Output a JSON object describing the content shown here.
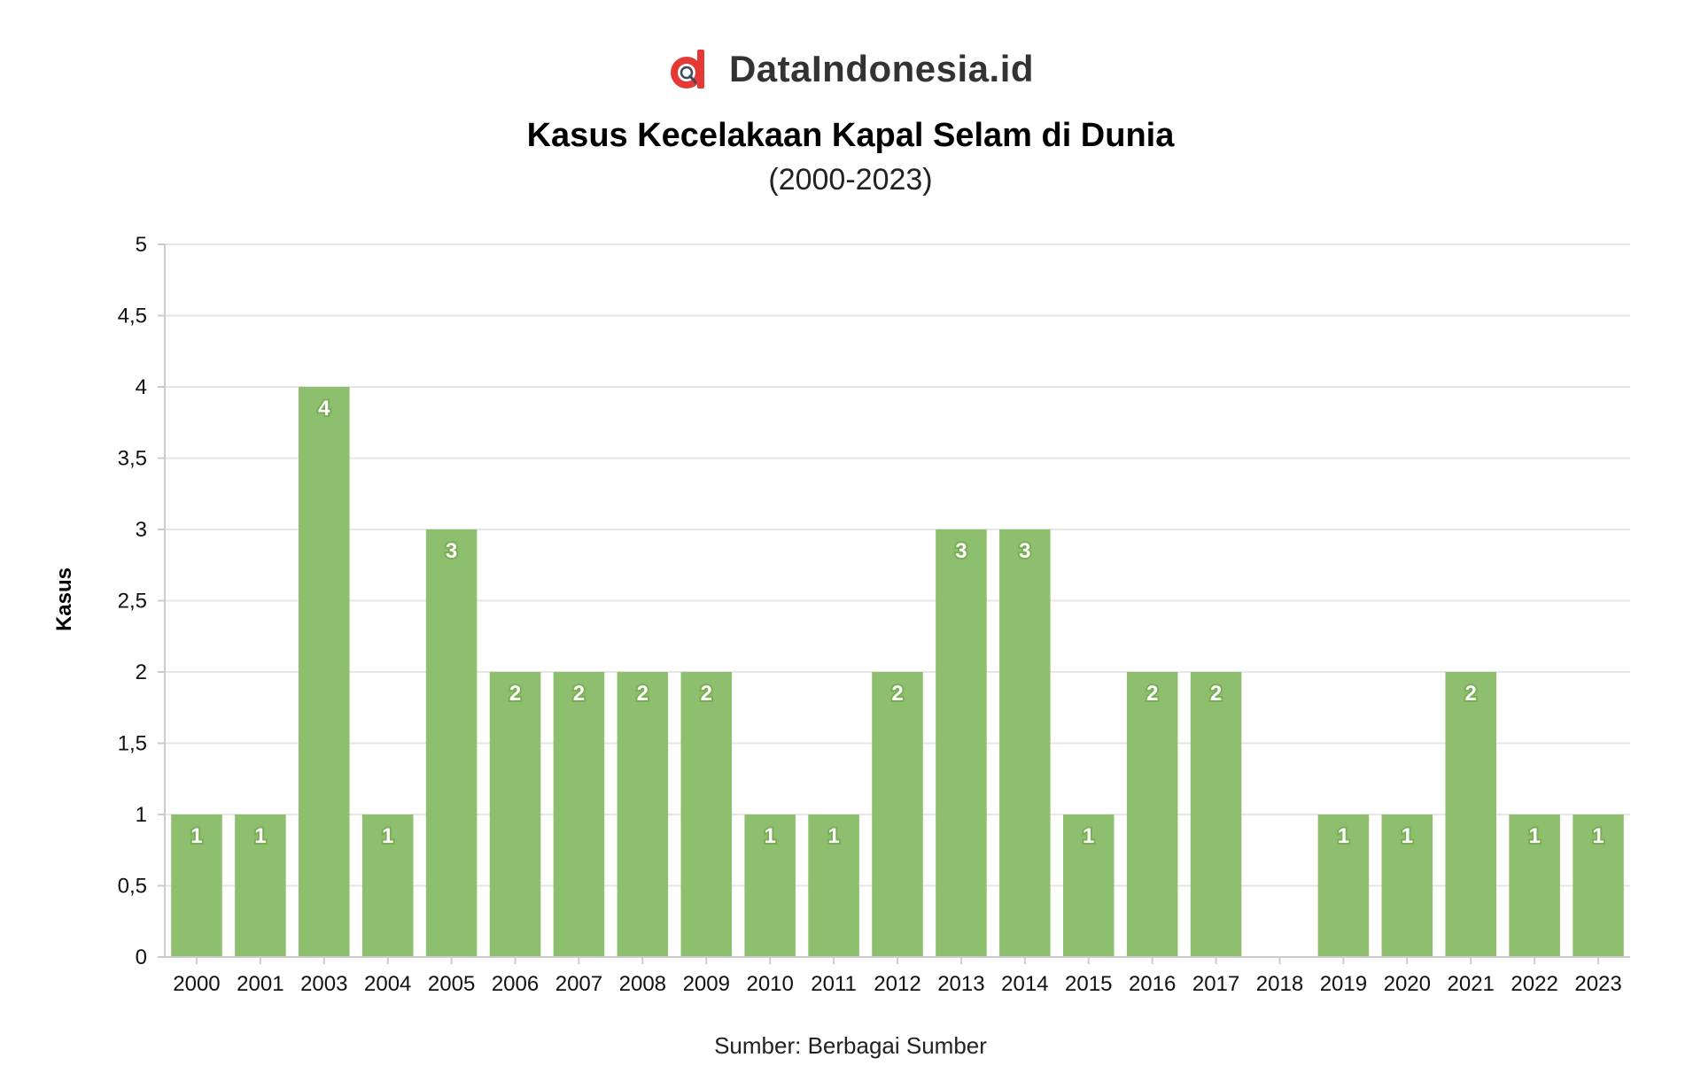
{
  "brand": {
    "name": "DataIndonesia.id",
    "logo_icon": "dataindonesia-logo-icon",
    "logo_color": "#e53935"
  },
  "chart_data": {
    "type": "bar",
    "title": "Kasus Kecelakaan Kapal Selam di Dunia",
    "subtitle": "(2000-2023)",
    "xlabel": "",
    "ylabel": "Kasus",
    "categories": [
      "2000",
      "2001",
      "2003",
      "2004",
      "2005",
      "2006",
      "2007",
      "2008",
      "2009",
      "2010",
      "2011",
      "2012",
      "2013",
      "2014",
      "2015",
      "2016",
      "2017",
      "2018",
      "2019",
      "2020",
      "2021",
      "2022",
      "2023"
    ],
    "values": [
      1,
      1,
      4,
      1,
      3,
      2,
      2,
      2,
      2,
      1,
      1,
      2,
      3,
      3,
      1,
      2,
      2,
      0,
      1,
      1,
      2,
      1,
      1
    ],
    "data_labels": [
      "1",
      "1",
      "4",
      "1",
      "3",
      "2",
      "2",
      "2",
      "2",
      "1",
      "1",
      "2",
      "3",
      "3",
      "1",
      "2",
      "2",
      "",
      "1",
      "1",
      "2",
      "1",
      "1"
    ],
    "ylim": [
      0,
      5
    ],
    "yticks": [
      0,
      0.5,
      1,
      1.5,
      2,
      2.5,
      3,
      3.5,
      4,
      4.5,
      5
    ],
    "ytick_labels": [
      "0",
      "0,5",
      "1",
      "1,5",
      "2",
      "2,5",
      "3",
      "3,5",
      "4",
      "4,5",
      "5"
    ],
    "grid": true,
    "bar_color": "#8ebf6e",
    "label_color": "#ffffff",
    "label_outline": "#7aae55"
  },
  "source": "Sumber: Berbagai Sumber"
}
